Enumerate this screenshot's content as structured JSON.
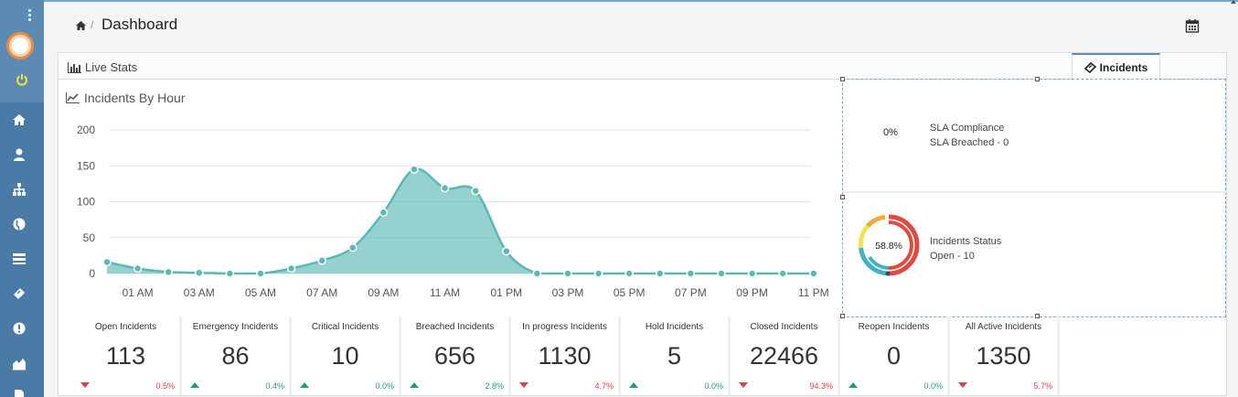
{
  "header": {
    "breadcrumb_sep": "/",
    "title": "Dashboard"
  },
  "tabs": {
    "live_stats": "Live Stats",
    "incidents": "Incidents"
  },
  "chart_title": "Incidents By Hour",
  "chart_data": {
    "type": "area",
    "x": [
      "12 AM",
      "01 AM",
      "02 AM",
      "03 AM",
      "04 AM",
      "05 AM",
      "06 AM",
      "07 AM",
      "08 AM",
      "09 AM",
      "10 AM",
      "11 AM",
      "12 PM",
      "01 PM",
      "02 PM",
      "03 PM",
      "04 PM",
      "05 PM",
      "06 PM",
      "07 PM",
      "08 PM",
      "09 PM",
      "10 PM",
      "11 PM"
    ],
    "tick_labels": [
      "01 AM",
      "03 AM",
      "05 AM",
      "07 AM",
      "09 AM",
      "11 AM",
      "01 PM",
      "03 PM",
      "05 PM",
      "07 PM",
      "09 PM",
      "11 PM"
    ],
    "values": [
      16,
      7,
      2,
      1,
      0,
      0,
      7,
      18,
      36,
      85,
      145,
      119,
      115,
      31,
      0,
      0,
      0,
      0,
      0,
      0,
      0,
      0,
      0,
      0
    ],
    "yticks": [
      0,
      50,
      100,
      150,
      200
    ],
    "ylim": [
      0,
      200
    ],
    "grid": true,
    "color": "#5cb8b5"
  },
  "sla": {
    "percent": "0%",
    "title": "SLA Compliance",
    "breached": "SLA Breached - 0"
  },
  "status": {
    "percent": "58.8%",
    "title": "Incidents Status",
    "open": "Open - 10",
    "segments_colors": [
      "#e04b3f",
      "#3fb3c6",
      "#f2e45a",
      "#f4a83a"
    ]
  },
  "stats": [
    {
      "label": "Open Incidents",
      "value": "113",
      "trend": "down",
      "pct": "0.5%"
    },
    {
      "label": "Emergency Incidents",
      "value": "86",
      "trend": "up",
      "pct": "0.4%"
    },
    {
      "label": "Critical Incidents",
      "value": "10",
      "trend": "up",
      "pct": "0.0%"
    },
    {
      "label": "Breached Incidents",
      "value": "656",
      "trend": "up",
      "pct": "2.8%"
    },
    {
      "label": "In progress Incidents",
      "value": "1130",
      "trend": "down",
      "pct": "4.7%"
    },
    {
      "label": "Hold Incidents",
      "value": "5",
      "trend": "up",
      "pct": "0.0%"
    },
    {
      "label": "Closed Incidents",
      "value": "22466",
      "trend": "down",
      "pct": "94.3%"
    },
    {
      "label": "Reopen Incidents",
      "value": "0",
      "trend": "up",
      "pct": "0.0%"
    },
    {
      "label": "All Active Incidents",
      "value": "1350",
      "trend": "down",
      "pct": "5.7%"
    }
  ],
  "sidebar_icons": [
    "home-icon",
    "user-icon",
    "sitemap-icon",
    "globe-icon",
    "list-icon",
    "ticket-icon",
    "alert-icon",
    "chart-icon",
    "document-icon"
  ]
}
